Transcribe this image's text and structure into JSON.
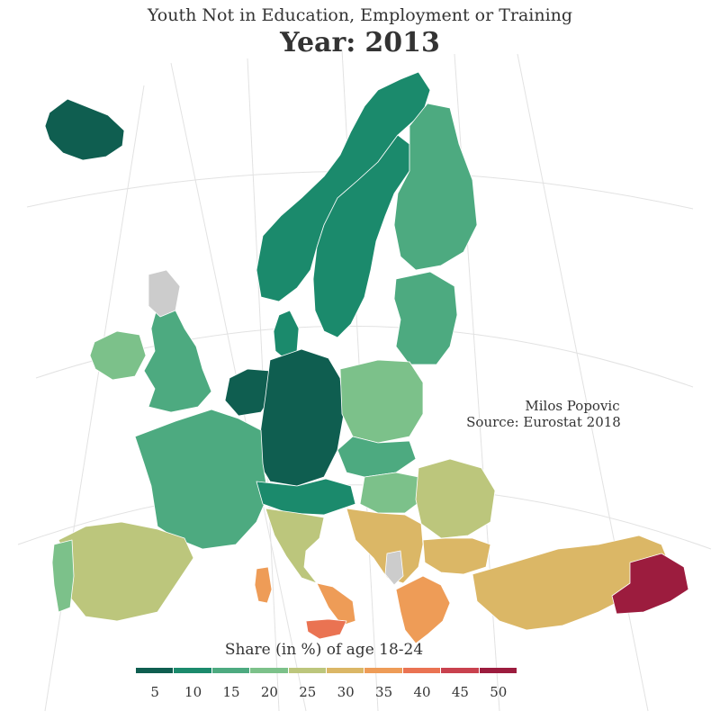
{
  "title": {
    "subtitle": "Youth Not in Education, Employment or Training",
    "year_label": "Year:",
    "year_value": "2013"
  },
  "credit": {
    "author": "Milos Popovic",
    "source": "Source: Eurostat 2018"
  },
  "legend": {
    "title": "Share (in %) of age 18-24",
    "breaks": [
      5,
      10,
      15,
      20,
      25,
      30,
      35,
      40,
      45,
      50
    ],
    "colors": [
      "#0f5e50",
      "#1b8a6c",
      "#4daa80",
      "#7cc18a",
      "#bcc67c",
      "#dbb766",
      "#ee9c57",
      "#ea7352",
      "#c9414e",
      "#9c1c3e"
    ],
    "no_data_color": "#cccccc"
  },
  "regions": [
    {
      "name": "Iceland",
      "value": 6
    },
    {
      "name": "Norway",
      "value": 8
    },
    {
      "name": "Sweden",
      "value": 9
    },
    {
      "name": "Finland",
      "value": 15
    },
    {
      "name": "Denmark",
      "value": 9
    },
    {
      "name": "Baltic states",
      "value": 17
    },
    {
      "name": "Ireland",
      "value": 20
    },
    {
      "name": "United Kingdom",
      "value": 17
    },
    {
      "name": "Netherlands",
      "value": 6
    },
    {
      "name": "Germany",
      "value": 7
    },
    {
      "name": "Poland",
      "value": 18
    },
    {
      "name": "France",
      "value": 14
    },
    {
      "name": "Switzerland / Austria",
      "value": 9
    },
    {
      "name": "Czechia / Slovakia",
      "value": 15
    },
    {
      "name": "Hungary",
      "value": 20
    },
    {
      "name": "Romania",
      "value": 25
    },
    {
      "name": "Bulgaria",
      "value": 32
    },
    {
      "name": "Spain",
      "value": 24
    },
    {
      "name": "Portugal",
      "value": 19
    },
    {
      "name": "Italy",
      "value": 27
    },
    {
      "name": "Southern Italy",
      "value": 35
    },
    {
      "name": "Sicily",
      "value": 39
    },
    {
      "name": "Sardinia",
      "value": 33
    },
    {
      "name": "Western Balkans",
      "value": 28
    },
    {
      "name": "Greece",
      "value": 35
    },
    {
      "name": "Turkey",
      "value": 29
    },
    {
      "name": "Eastern Turkey",
      "value": 48
    }
  ]
}
